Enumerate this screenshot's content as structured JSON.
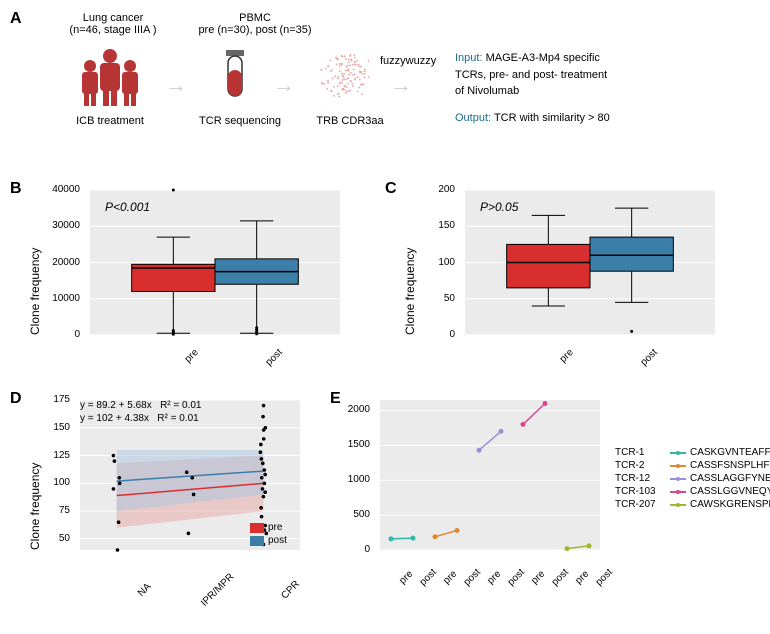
{
  "panelA": {
    "label": "A",
    "top_text1": "Lung cancer",
    "top_text2": "(n=46, stage IIIA )",
    "top_text3": "PBMC",
    "top_text4": "pre (n=30), post (n=35)",
    "bottom1": "ICB treatment",
    "bottom2": "TCR sequencing",
    "bottom3": "TRB CDR3aa",
    "fuzzy": "fuzzywuzzy",
    "input_label": "Input:",
    "input_text1": "MAGE-A3-Mp4 specific",
    "input_text2": "TCRs, pre- and post- treatment",
    "input_text3": "of Nivolumab",
    "output_label": "Output:",
    "output_text": "TCR with similarity > 80",
    "icon_color": "#b83535",
    "scatter_color": "#e8a5a5",
    "label_color_io": "#1f6b8a"
  },
  "panelB": {
    "label": "B",
    "type": "boxplot",
    "ylabel": "Clone frequency",
    "p_text": "P<0.001",
    "categories": [
      "pre",
      "post"
    ],
    "colors": [
      "#d92e2e",
      "#3b7ea8"
    ],
    "ylim": [
      0,
      40000
    ],
    "yticks": [
      0,
      10000,
      20000,
      30000,
      40000
    ],
    "boxes": [
      {
        "q1": 12000,
        "median": 18500,
        "q3": 19500,
        "whisker_low": 500,
        "whisker_high": 27000,
        "outliers": [
          200,
          400,
          800,
          1200,
          40000
        ]
      },
      {
        "q1": 14000,
        "median": 17500,
        "q3": 21000,
        "whisker_low": 500,
        "whisker_high": 31500,
        "outliers": [
          300,
          600,
          1000,
          1500,
          2000
        ]
      }
    ],
    "background": "#ebebeb",
    "grid_color": "#ffffff"
  },
  "panelC": {
    "label": "C",
    "type": "boxplot",
    "ylabel": "Clone frequency",
    "p_text": "P>0.05",
    "categories": [
      "pre",
      "post"
    ],
    "colors": [
      "#d92e2e",
      "#3b7ea8"
    ],
    "ylim": [
      0,
      200
    ],
    "yticks": [
      0,
      50,
      100,
      150,
      200
    ],
    "boxes": [
      {
        "q1": 65,
        "median": 100,
        "q3": 125,
        "whisker_low": 40,
        "whisker_high": 165,
        "outliers": []
      },
      {
        "q1": 88,
        "median": 110,
        "q3": 135,
        "whisker_low": 45,
        "whisker_high": 175,
        "outliers": [
          5
        ]
      }
    ],
    "background": "#ebebeb",
    "grid_color": "#ffffff"
  },
  "panelD": {
    "label": "D",
    "type": "scatter-regression",
    "ylabel": "Clone frequency",
    "eq1": "y = 89.2 + 5.68x",
    "r1": "R² = 0.01",
    "eq2": "y = 102 + 4.38x",
    "r2": "R² = 0.01",
    "categories": [
      "NA",
      "IPR/MPR",
      "CPR"
    ],
    "ylim": [
      0,
      175
    ],
    "yticks": [
      50,
      75,
      100,
      125,
      150,
      175
    ],
    "series": [
      {
        "name": "pre",
        "color": "#d92e2e",
        "fill": "#e8a5a5",
        "line_y": [
          89,
          100
        ],
        "band": [
          [
            60,
            118
          ],
          [
            75,
            125
          ]
        ]
      },
      {
        "name": "post",
        "color": "#3b7ea8",
        "fill": "#a8c5dd",
        "line_y": [
          102,
          111
        ],
        "band": [
          [
            75,
            130
          ],
          [
            90,
            130
          ]
        ]
      }
    ],
    "points": {
      "NA": [
        40,
        65,
        95,
        100,
        105,
        120,
        125
      ],
      "IPR/MPR": [
        55,
        90,
        105,
        110
      ],
      "CPR": [
        45,
        55,
        58,
        62,
        70,
        78,
        88,
        92,
        95,
        100,
        105,
        108,
        112,
        118,
        122,
        128,
        135,
        140,
        148,
        150,
        160,
        170
      ]
    },
    "background": "#ebebeb",
    "grid_color": "#ffffff"
  },
  "panelE": {
    "label": "E",
    "type": "line",
    "ylim": [
      0,
      2000
    ],
    "yticks": [
      0,
      500,
      1000,
      1500,
      2000
    ],
    "x_labels": [
      "pre",
      "post",
      "pre",
      "post",
      "pre",
      "post",
      "pre",
      "post",
      "pre",
      "post"
    ],
    "series": [
      {
        "id": "TCR-1",
        "seq": "CASKGVNTEAFF",
        "color": "#2db8a8",
        "x": [
          0,
          1
        ],
        "y": [
          160,
          170
        ]
      },
      {
        "id": "TCR-2",
        "seq": "CASSFSNSPLHF",
        "color": "#e08830",
        "x": [
          2,
          3
        ],
        "y": [
          190,
          280
        ]
      },
      {
        "id": "TCR-12",
        "seq": "CASSLAGGFYNEQFF",
        "color": "#9b8ed8",
        "x": [
          4,
          5
        ],
        "y": [
          1430,
          1700
        ]
      },
      {
        "id": "TCR-103",
        "seq": "CASSLGGVNEQYF",
        "color": "#d84590",
        "x": [
          6,
          7
        ],
        "y": [
          1800,
          2100
        ]
      },
      {
        "id": "TCR-207",
        "seq": "CAWSKGRENSPLHF",
        "color": "#9db82d",
        "x": [
          8,
          9
        ],
        "y": [
          20,
          60
        ]
      }
    ],
    "background": "#ebebeb",
    "grid_color": "#ffffff"
  }
}
